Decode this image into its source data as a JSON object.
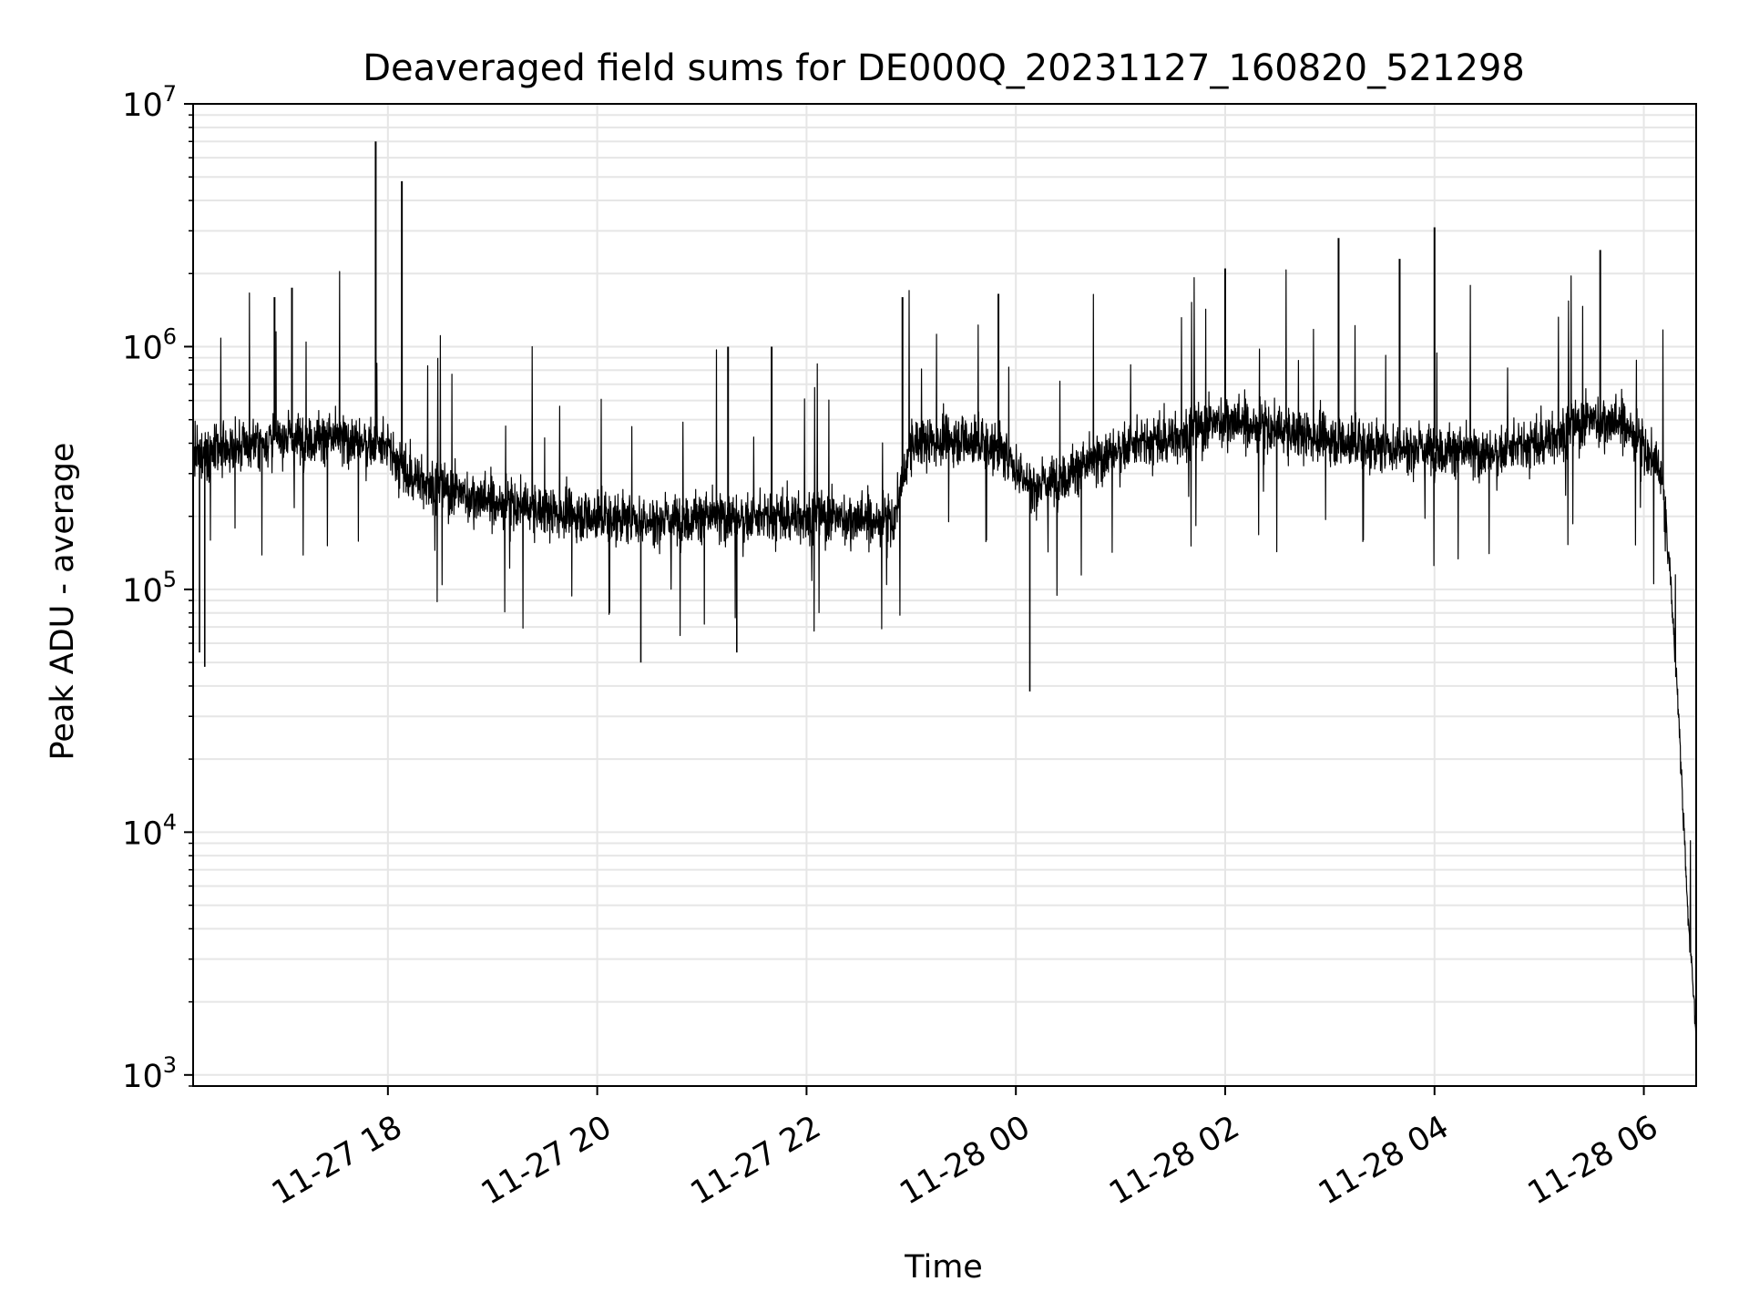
{
  "chart_data": {
    "type": "line",
    "title": "Deaveraged field sums for DE000Q_20231127_160820_521298",
    "xlabel": "Time",
    "ylabel": "Peak ADU - average",
    "yscale": "log",
    "ylim": [
      900,
      10000000
    ],
    "xlim": [
      "2023-11-27 16:08:20",
      "2023-11-28 06:30:00"
    ],
    "grid": true,
    "line_color": "#000000",
    "grid_color": "#e6e6e6",
    "x_ticks": [
      {
        "label": "11-27 18",
        "value": "2023-11-27 18:00"
      },
      {
        "label": "11-27 20",
        "value": "2023-11-27 20:00"
      },
      {
        "label": "11-27 22",
        "value": "2023-11-27 22:00"
      },
      {
        "label": "11-28 00",
        "value": "2023-11-28 00:00"
      },
      {
        "label": "11-28 02",
        "value": "2023-11-28 02:00"
      },
      {
        "label": "11-28 04",
        "value": "2023-11-28 04:00"
      },
      {
        "label": "11-28 06",
        "value": "2023-11-28 06:00"
      }
    ],
    "y_ticks": [
      {
        "base": "10",
        "exp": "3",
        "value": 1000
      },
      {
        "base": "10",
        "exp": "4",
        "value": 10000
      },
      {
        "base": "10",
        "exp": "5",
        "value": 100000
      },
      {
        "base": "10",
        "exp": "6",
        "value": 1000000
      },
      {
        "base": "10",
        "exp": "7",
        "value": 10000000
      }
    ],
    "series": [
      {
        "x": [
          "2023-11-27 16:10",
          "2023-11-27 16:30",
          "2023-11-27 17:00",
          "2023-11-27 17:30",
          "2023-11-27 17:50",
          "2023-11-27 18:00",
          "2023-11-27 18:10",
          "2023-11-27 18:30",
          "2023-11-27 19:00",
          "2023-11-27 19:30",
          "2023-11-27 20:00",
          "2023-11-27 20:30",
          "2023-11-27 21:00",
          "2023-11-27 21:30",
          "2023-11-27 22:00",
          "2023-11-27 22:30",
          "2023-11-27 22:50",
          "2023-11-27 23:00",
          "2023-11-27 23:30",
          "2023-11-27 23:50",
          "2023-11-28 00:10",
          "2023-11-28 00:30",
          "2023-11-28 01:00",
          "2023-11-28 01:30",
          "2023-11-28 02:00",
          "2023-11-28 02:30",
          "2023-11-28 03:00",
          "2023-11-28 03:30",
          "2023-11-28 04:00",
          "2023-11-28 04:30",
          "2023-11-28 05:00",
          "2023-11-28 05:30",
          "2023-11-28 05:50",
          "2023-11-28 06:10",
          "2023-11-28 06:15",
          "2023-11-28 06:20",
          "2023-11-28 06:25",
          "2023-11-28 06:28",
          "2023-11-28 06:30"
        ],
        "y": [
          350000,
          380000,
          420000,
          420000,
          400000,
          380000,
          300000,
          260000,
          230000,
          210000,
          200000,
          190000,
          200000,
          195000,
          200000,
          195000,
          190000,
          400000,
          420000,
          380000,
          260000,
          300000,
          380000,
          420000,
          500000,
          450000,
          420000,
          380000,
          380000,
          360000,
          400000,
          500000,
          480000,
          300000,
          120000,
          30000,
          5000,
          2500,
          1500
        ]
      }
    ],
    "spikes": [
      {
        "x": "2023-11-27 17:53",
        "y": 7000000
      },
      {
        "x": "2023-11-27 18:08",
        "y": 4800000
      },
      {
        "x": "2023-11-28 03:05",
        "y": 2800000
      },
      {
        "x": "2023-11-28 04:00",
        "y": 3100000
      },
      {
        "x": "2023-11-28 05:35",
        "y": 2500000
      },
      {
        "x": "2023-11-28 02:00",
        "y": 2100000
      },
      {
        "x": "2023-11-28 03:40",
        "y": 2300000
      },
      {
        "x": "2023-11-27 22:55",
        "y": 1600000
      },
      {
        "x": "2023-11-27 23:50",
        "y": 1650000
      },
      {
        "x": "2023-11-27 21:15",
        "y": 1000000
      },
      {
        "x": "2023-11-27 21:40",
        "y": 1000000
      },
      {
        "x": "2023-11-27 17:05",
        "y": 1750000
      },
      {
        "x": "2023-11-27 16:55",
        "y": 1600000
      }
    ],
    "dips": [
      {
        "x": "2023-11-27 16:15",
        "y": 48000
      },
      {
        "x": "2023-11-27 16:12",
        "y": 55000
      },
      {
        "x": "2023-11-28 00:08",
        "y": 38000
      },
      {
        "x": "2023-11-27 20:25",
        "y": 50000
      },
      {
        "x": "2023-11-27 21:20",
        "y": 55000
      }
    ]
  }
}
